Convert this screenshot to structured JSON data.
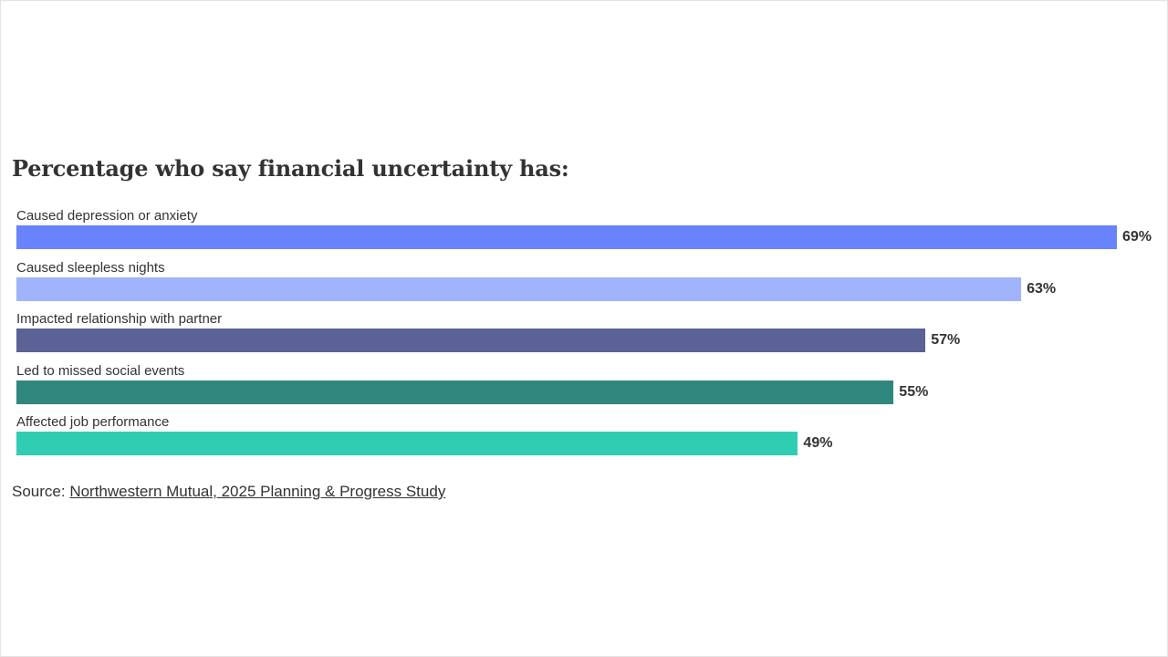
{
  "chart_data": {
    "type": "bar",
    "orientation": "horizontal",
    "title": "Percentage who say financial uncertainty has:",
    "categories": [
      "Caused depression or anxiety",
      "Caused sleepless nights",
      "Impacted relationship with partner",
      "Led to missed social events",
      "Affected job performance"
    ],
    "values": [
      69,
      63,
      57,
      55,
      49
    ],
    "value_labels": [
      "69%",
      "63%",
      "57%",
      "55%",
      "49%"
    ],
    "colors": [
      "#6883fb",
      "#a0b3fb",
      "#5a6296",
      "#30877e",
      "#31cdb3"
    ],
    "xlim": [
      0,
      69
    ],
    "grid": false,
    "legend": "none"
  },
  "source": {
    "prefix": "Source: ",
    "link_text": "Northwestern Mutual, 2025 Planning & Progress Study"
  }
}
